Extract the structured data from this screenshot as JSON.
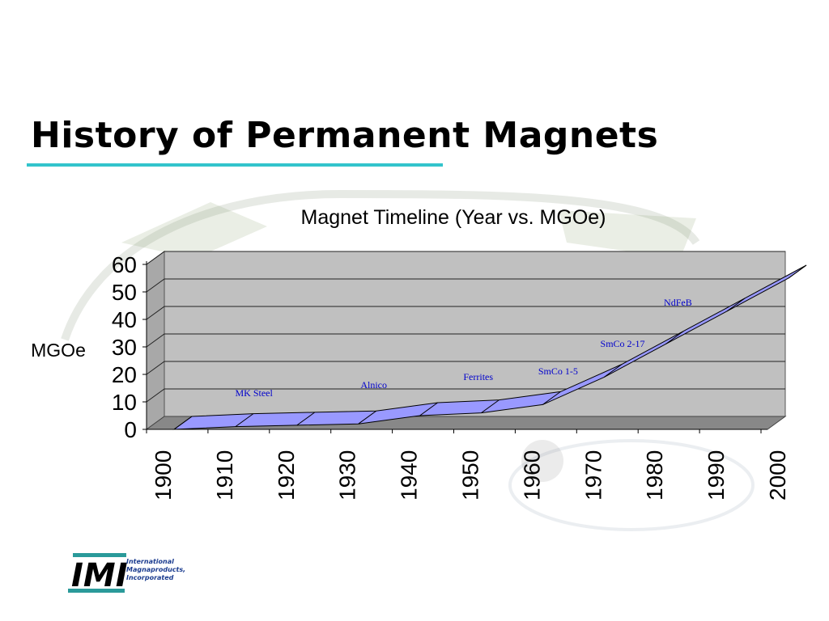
{
  "slide": {
    "title": "History of Permanent Magnets",
    "accent_color": "#33c4cc"
  },
  "chart_data": {
    "type": "area",
    "title": "Magnet Timeline (Year vs. MGOe)",
    "xlabel": "",
    "ylabel": "MGOe",
    "ylim": [
      0,
      60
    ],
    "yticks": [
      "0",
      "10",
      "20",
      "30",
      "40",
      "50",
      "60"
    ],
    "xticks": [
      "1900",
      "1910",
      "1920",
      "1930",
      "1940",
      "1950",
      "1960",
      "1970",
      "1980",
      "1990",
      "2000"
    ],
    "grid": true,
    "three_d": true,
    "series_color": "#9999ff",
    "wall_color": "#c0c0c0",
    "x": [
      1900,
      1910,
      1920,
      1930,
      1940,
      1950,
      1960,
      1970,
      1980,
      1990,
      2000
    ],
    "values": [
      0,
      1,
      1.5,
      2,
      5,
      6,
      9,
      19,
      31,
      43,
      55
    ],
    "annotations": [
      {
        "text": "MK Steel",
        "x": 1913,
        "y": 12
      },
      {
        "text": "Alnico",
        "x": 1932.5,
        "y": 15
      },
      {
        "text": "Ferrites",
        "x": 1949.5,
        "y": 18
      },
      {
        "text": "SmCo 1-5",
        "x": 1962.5,
        "y": 20
      },
      {
        "text": "SmCo 2-17",
        "x": 1973,
        "y": 30
      },
      {
        "text": "NdFeB",
        "x": 1982,
        "y": 45
      }
    ],
    "annotation_color": "#0000cc"
  },
  "logo": {
    "mark": "IMI",
    "lines": [
      "International",
      "Magnaproducts,",
      "Incorporated"
    ]
  }
}
